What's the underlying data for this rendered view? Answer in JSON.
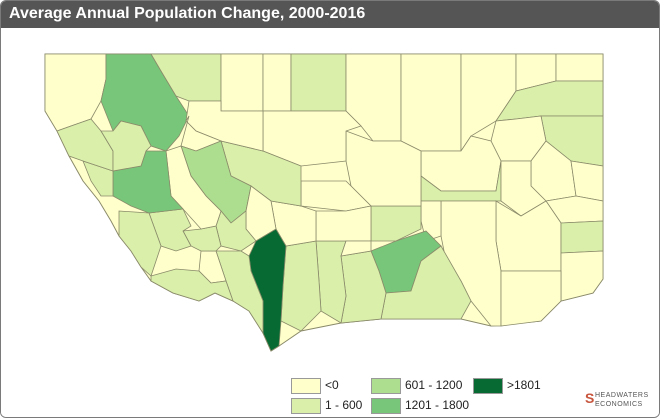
{
  "title": "Average Annual Population Change, 2000-2016",
  "colors": {
    "neg": "#ffffcc",
    "c1_600": "#d9efaa",
    "c601_1200": "#addd8e",
    "c1201_1800": "#78c679",
    "c1801": "#076a33"
  },
  "legend": [
    {
      "label": "<0",
      "color": "#ffffcc"
    },
    {
      "label": "601 - 1200",
      "color": "#addd8e"
    },
    {
      "label": ">1801",
      "color": "#076a33"
    },
    {
      "label": "1 - 600",
      "color": "#d9efaa"
    },
    {
      "label": "1201 - 1800",
      "color": "#78c679"
    }
  ],
  "logo": {
    "line1": "HEADWATERS",
    "line2": "ECONOMICS",
    "mark": "S"
  }
}
